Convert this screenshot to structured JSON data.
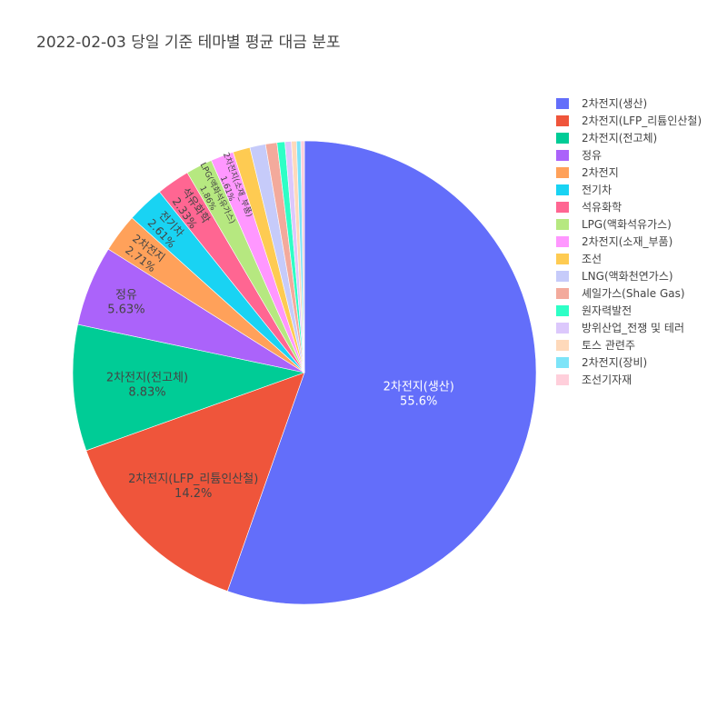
{
  "chart_data": {
    "type": "pie",
    "title": "2022-02-03 당일 기준 테마별 평균 대금 분포",
    "legend_position": "right",
    "slices": [
      {
        "label": "2차전지(생산)",
        "value": 55.6,
        "text": "55.6%",
        "color": "#636efa"
      },
      {
        "label": "2차전지(LFP_리튬인산철)",
        "value": 14.2,
        "text": "14.2%",
        "color": "#EF553B"
      },
      {
        "label": "2차전지(전고체)",
        "value": 8.83,
        "text": "8.83%",
        "color": "#00cc96"
      },
      {
        "label": "정유",
        "value": 5.63,
        "text": "5.63%",
        "color": "#ab63fa"
      },
      {
        "label": "2차전지",
        "value": 2.71,
        "text": "2.71%",
        "color": "#FFA15A"
      },
      {
        "label": "전기차",
        "value": 2.61,
        "text": "2.61%",
        "color": "#19d3f3"
      },
      {
        "label": "석유화학",
        "value": 2.33,
        "text": "2.33%",
        "color": "#FF6692"
      },
      {
        "label": "LPG(액화석유가스)",
        "value": 1.86,
        "text": "1.86%",
        "color": "#B6E880"
      },
      {
        "label": "2차전지(소재_부품)",
        "value": 1.61,
        "text": "1.61%",
        "color": "#FF97FF"
      },
      {
        "label": "조선",
        "value": 1.2,
        "text": "",
        "color": "#FECB52"
      },
      {
        "label": "LNG(액화천연가스)",
        "value": 1.1,
        "text": "",
        "color": "#c6cbfa"
      },
      {
        "label": "셰일가스(Shale Gas)",
        "value": 0.8,
        "text": "",
        "color": "#F3AA9C"
      },
      {
        "label": "원자력발전",
        "value": 0.55,
        "text": "",
        "color": "#2effc6"
      },
      {
        "label": "방위산업_전쟁 및 테러",
        "value": 0.45,
        "text": "",
        "color": "#dcc8fc"
      },
      {
        "label": "토스 관련주",
        "value": 0.35,
        "text": "",
        "color": "#FED9BA"
      },
      {
        "label": "2차전지(장비)",
        "value": 0.3,
        "text": "",
        "color": "#7de4f8"
      },
      {
        "label": "조선기자재",
        "value": 0.25,
        "text": "",
        "color": "#FFCFDB"
      }
    ]
  }
}
